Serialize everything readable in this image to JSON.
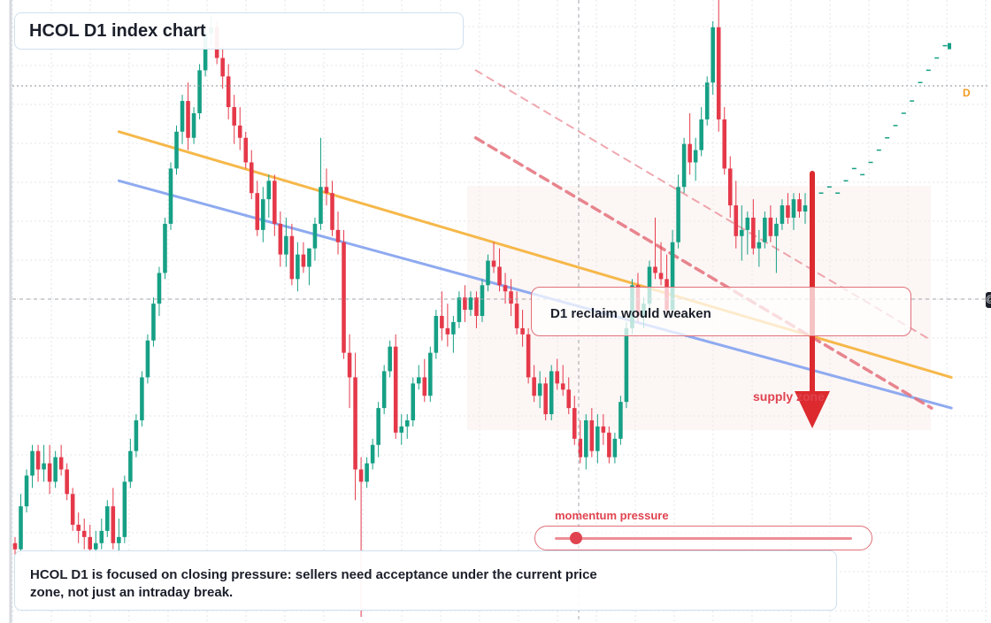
{
  "title": "HCOL D1 index chart",
  "reclaim_note": "D1 reclaim would weaken",
  "supply_zone_label": "supply zone",
  "momentum_label": "momentum pressure",
  "momentum_level": 0.07,
  "description": "HCOL D1 is focused on closing pressure: sellers need acceptance under the current price zone, not just an intraday break.",
  "marker_letter": "D",
  "edge_marker": "@",
  "colors": {
    "up": "#16a085",
    "down": "#e5394a",
    "trend_orange": "#f6b84a",
    "trend_blue": "#8eaaf0",
    "resistance_red": "#e4707a",
    "grid": "#e3e6ea",
    "crosshair": "#a0a4ac",
    "accent": "#e0434f"
  },
  "chart_data": {
    "type": "candlestick",
    "title": "HCOL D1 index chart",
    "timeframe": "D1",
    "ylim": [
      0,
      100
    ],
    "candles": [
      [
        13,
        14,
        11,
        12
      ],
      [
        12,
        21,
        11,
        19
      ],
      [
        19,
        25,
        18,
        24
      ],
      [
        24,
        29,
        22,
        28
      ],
      [
        28,
        29,
        23,
        25
      ],
      [
        25,
        29,
        23,
        26
      ],
      [
        26,
        29,
        21,
        23
      ],
      [
        23,
        28,
        22,
        27
      ],
      [
        27,
        29,
        24,
        25
      ],
      [
        25,
        26,
        20,
        21
      ],
      [
        21,
        22,
        15,
        16
      ],
      [
        16,
        18,
        13,
        15
      ],
      [
        15,
        17,
        12,
        14
      ],
      [
        14,
        16,
        11,
        12
      ],
      [
        12,
        15,
        10,
        13
      ],
      [
        13,
        17,
        12,
        15
      ],
      [
        15,
        20,
        14,
        19
      ],
      [
        19,
        22,
        12,
        13
      ],
      [
        13,
        17,
        11,
        14
      ],
      [
        14,
        24,
        13,
        23
      ],
      [
        23,
        30,
        22,
        28
      ],
      [
        28,
        34,
        27,
        33
      ],
      [
        33,
        41,
        32,
        40
      ],
      [
        40,
        47,
        39,
        46
      ],
      [
        46,
        53,
        45,
        52
      ],
      [
        52,
        58,
        50,
        57
      ],
      [
        57,
        66,
        56,
        65
      ],
      [
        65,
        75,
        64,
        74
      ],
      [
        74,
        81,
        73,
        80
      ],
      [
        80,
        86,
        78,
        85
      ],
      [
        85,
        88,
        77,
        79
      ],
      [
        79,
        84,
        78,
        83
      ],
      [
        83,
        91,
        82,
        90
      ],
      [
        90,
        97,
        89,
        96
      ],
      [
        96,
        99,
        94,
        97
      ],
      [
        97,
        98,
        91,
        92
      ],
      [
        92,
        94,
        87,
        89
      ],
      [
        89,
        91,
        82,
        84
      ],
      [
        84,
        86,
        78,
        81
      ],
      [
        81,
        84,
        77,
        79
      ],
      [
        79,
        80,
        74,
        75
      ],
      [
        75,
        77,
        69,
        70
      ],
      [
        70,
        72,
        63,
        64
      ],
      [
        64,
        71,
        62,
        69
      ],
      [
        69,
        73,
        66,
        72
      ],
      [
        72,
        73,
        63,
        65
      ],
      [
        65,
        67,
        58,
        60
      ],
      [
        60,
        66,
        58,
        63
      ],
      [
        63,
        65,
        55,
        56
      ],
      [
        56,
        62,
        54,
        60
      ],
      [
        60,
        62,
        57,
        58
      ],
      [
        58,
        61,
        55,
        61
      ],
      [
        61,
        66,
        59,
        65
      ],
      [
        65,
        79,
        64,
        71
      ],
      [
        71,
        74,
        68,
        70
      ],
      [
        70,
        72,
        63,
        64
      ],
      [
        64,
        67,
        60,
        62
      ],
      [
        62,
        64,
        43,
        44
      ],
      [
        44,
        47,
        35,
        40
      ],
      [
        40,
        44,
        20,
        25
      ],
      [
        25,
        27,
        1,
        23
      ],
      [
        23,
        27,
        22,
        26
      ],
      [
        26,
        30,
        25,
        29
      ],
      [
        29,
        36,
        27,
        35
      ],
      [
        35,
        42,
        34,
        41
      ],
      [
        41,
        46,
        40,
        45
      ],
      [
        45,
        47,
        30,
        31
      ],
      [
        31,
        34,
        29,
        32
      ],
      [
        32,
        34,
        30,
        33
      ],
      [
        33,
        40,
        32,
        39
      ],
      [
        39,
        42,
        38,
        40
      ],
      [
        40,
        43,
        36,
        37
      ],
      [
        37,
        45,
        36,
        44
      ],
      [
        44,
        51,
        43,
        50
      ],
      [
        50,
        54,
        46,
        48
      ],
      [
        48,
        52,
        45,
        47
      ],
      [
        47,
        50,
        44,
        49
      ],
      [
        49,
        54,
        48,
        53
      ],
      [
        53,
        55,
        49,
        51
      ],
      [
        51,
        54,
        50,
        53
      ],
      [
        53,
        54,
        48,
        50
      ],
      [
        50,
        56,
        49,
        55
      ],
      [
        55,
        60,
        54,
        59
      ],
      [
        59,
        62,
        57,
        58
      ],
      [
        58,
        61,
        54,
        55
      ],
      [
        55,
        57,
        52,
        54
      ],
      [
        54,
        56,
        50,
        52
      ],
      [
        52,
        54,
        47,
        48
      ],
      [
        48,
        51,
        45,
        47
      ],
      [
        47,
        48,
        39,
        40
      ],
      [
        40,
        42,
        36,
        37
      ],
      [
        37,
        41,
        35,
        39
      ],
      [
        39,
        40,
        33,
        34
      ],
      [
        34,
        42,
        33,
        41
      ],
      [
        41,
        43,
        38,
        39
      ],
      [
        39,
        42,
        37,
        38
      ],
      [
        38,
        40,
        34,
        35
      ],
      [
        35,
        37,
        29,
        30
      ],
      [
        30,
        33,
        26,
        27
      ],
      [
        27,
        34,
        25,
        33
      ],
      [
        33,
        35,
        27,
        28
      ],
      [
        28,
        34,
        26,
        32
      ],
      [
        32,
        34,
        29,
        31
      ],
      [
        31,
        32,
        26,
        27
      ],
      [
        27,
        31,
        26,
        30
      ],
      [
        30,
        37,
        29,
        36
      ],
      [
        36,
        49,
        35,
        48
      ],
      [
        48,
        56,
        47,
        55
      ],
      [
        55,
        57,
        49,
        50
      ],
      [
        50,
        53,
        48,
        52
      ],
      [
        52,
        59,
        51,
        58
      ],
      [
        58,
        66,
        56,
        57
      ],
      [
        57,
        62,
        55,
        56
      ],
      [
        56,
        60,
        50,
        51
      ],
      [
        51,
        64,
        50,
        62
      ],
      [
        62,
        73,
        61,
        71
      ],
      [
        71,
        79,
        70,
        78
      ],
      [
        78,
        83,
        73,
        75
      ],
      [
        75,
        79,
        72,
        77
      ],
      [
        77,
        84,
        76,
        82
      ],
      [
        82,
        89,
        81,
        88
      ],
      [
        88,
        98,
        86,
        97
      ],
      [
        97,
        102,
        80,
        82
      ],
      [
        82,
        84,
        73,
        74
      ],
      [
        74,
        76,
        66,
        68
      ],
      [
        68,
        72,
        61,
        63
      ],
      [
        63,
        68,
        59,
        64
      ],
      [
        64,
        67,
        60,
        66
      ],
      [
        66,
        69,
        60,
        61
      ],
      [
        61,
        64,
        58,
        62
      ],
      [
        62,
        67,
        61,
        66
      ],
      [
        66,
        68,
        62,
        63
      ],
      [
        63,
        66,
        57,
        65
      ],
      [
        65,
        69,
        64,
        68
      ],
      [
        68,
        70,
        65,
        66
      ],
      [
        66,
        70,
        64,
        69
      ],
      [
        69,
        70,
        66,
        67
      ],
      [
        67,
        70,
        65,
        68
      ]
    ],
    "projection": [
      70,
      71,
      70,
      72,
      74,
      73,
      75,
      77,
      79,
      81,
      83,
      85,
      88,
      90,
      92,
      94
    ],
    "trendlines": [
      {
        "color": "orange",
        "from": [
          0.12,
          80
        ],
        "to": [
          0.96,
          40
        ]
      },
      {
        "color": "blue",
        "from": [
          0.12,
          72
        ],
        "to": [
          0.96,
          35
        ]
      },
      {
        "color": "red",
        "style": "dashed",
        "from": [
          0.48,
          79
        ],
        "to": [
          0.94,
          35
        ]
      },
      {
        "color": "red",
        "style": "dashed-light",
        "from": [
          0.48,
          90
        ],
        "to": [
          0.94,
          46
        ]
      }
    ],
    "current_price_line": 56
  }
}
